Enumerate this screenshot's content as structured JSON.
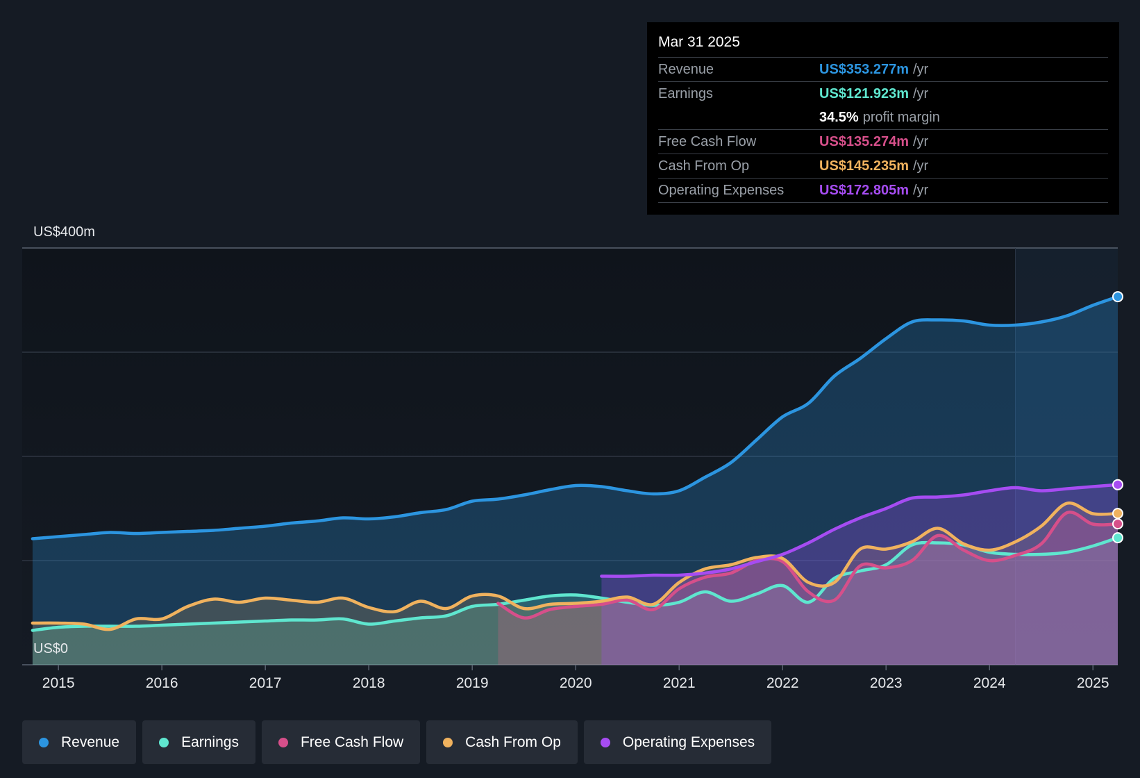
{
  "tooltip": {
    "date": "Mar 31 2025",
    "rows": [
      {
        "label": "Revenue",
        "value": "US$353.277m",
        "unit": "/yr",
        "color": "#2c95e0"
      },
      {
        "label": "Earnings",
        "value": "US$121.923m",
        "unit": "/yr",
        "color": "#5fe6cf"
      },
      {
        "label": "",
        "value": "34.5%",
        "unit": "profit margin",
        "color": "#ffffff"
      },
      {
        "label": "Free Cash Flow",
        "value": "US$135.274m",
        "unit": "/yr",
        "color": "#d64f8a"
      },
      {
        "label": "Cash From Op",
        "value": "US$145.235m",
        "unit": "/yr",
        "color": "#f0b25e"
      },
      {
        "label": "Operating Expenses",
        "value": "US$172.805m",
        "unit": "/yr",
        "color": "#a64cf2"
      }
    ]
  },
  "legend": [
    {
      "label": "Revenue",
      "color": "#2c95e0"
    },
    {
      "label": "Earnings",
      "color": "#5fe6cf"
    },
    {
      "label": "Free Cash Flow",
      "color": "#d64f8a"
    },
    {
      "label": "Cash From Op",
      "color": "#f0b25e"
    },
    {
      "label": "Operating Expenses",
      "color": "#a64cf2"
    }
  ],
  "chart_data": {
    "type": "area",
    "y_axis_labels": [
      "US$400m",
      "US$0"
    ],
    "ylim": [
      0,
      400
    ],
    "xlim": [
      2014.65,
      2025.24
    ],
    "x_ticks": [
      "2015",
      "2016",
      "2017",
      "2018",
      "2019",
      "2020",
      "2021",
      "2022",
      "2023",
      "2024",
      "2025"
    ],
    "grid": true,
    "series": [
      {
        "name": "Revenue",
        "color": "#2c95e0",
        "points": [
          [
            2014.75,
            121
          ],
          [
            2015.0,
            123
          ],
          [
            2015.25,
            125
          ],
          [
            2015.5,
            127
          ],
          [
            2015.75,
            126
          ],
          [
            2016.0,
            127
          ],
          [
            2016.25,
            128
          ],
          [
            2016.5,
            129
          ],
          [
            2016.75,
            131
          ],
          [
            2017.0,
            133
          ],
          [
            2017.25,
            136
          ],
          [
            2017.5,
            138
          ],
          [
            2017.75,
            141
          ],
          [
            2018.0,
            140
          ],
          [
            2018.25,
            142
          ],
          [
            2018.5,
            146
          ],
          [
            2018.75,
            149
          ],
          [
            2019.0,
            157
          ],
          [
            2019.25,
            159
          ],
          [
            2019.5,
            163
          ],
          [
            2019.75,
            168
          ],
          [
            2020.0,
            172
          ],
          [
            2020.25,
            171
          ],
          [
            2020.5,
            167
          ],
          [
            2020.75,
            164
          ],
          [
            2021.0,
            167
          ],
          [
            2021.25,
            180
          ],
          [
            2021.5,
            194
          ],
          [
            2021.75,
            216
          ],
          [
            2022.0,
            238
          ],
          [
            2022.25,
            251
          ],
          [
            2022.5,
            277
          ],
          [
            2022.75,
            294
          ],
          [
            2023.0,
            313
          ],
          [
            2023.25,
            329
          ],
          [
            2023.5,
            331
          ],
          [
            2023.75,
            330
          ],
          [
            2024.0,
            326
          ],
          [
            2024.25,
            326
          ],
          [
            2024.5,
            329
          ],
          [
            2024.75,
            335
          ],
          [
            2025.0,
            345
          ],
          [
            2025.24,
            353.277
          ]
        ]
      },
      {
        "name": "Earnings",
        "color": "#5fe6cf",
        "points": [
          [
            2014.75,
            33
          ],
          [
            2015.0,
            36
          ],
          [
            2015.25,
            37
          ],
          [
            2015.5,
            37
          ],
          [
            2015.75,
            37
          ],
          [
            2016.0,
            38
          ],
          [
            2016.25,
            39
          ],
          [
            2016.5,
            40
          ],
          [
            2016.75,
            41
          ],
          [
            2017.0,
            42
          ],
          [
            2017.25,
            43
          ],
          [
            2017.5,
            43
          ],
          [
            2017.75,
            44
          ],
          [
            2018.0,
            39
          ],
          [
            2018.25,
            42
          ],
          [
            2018.5,
            45
          ],
          [
            2018.75,
            47
          ],
          [
            2019.0,
            56
          ],
          [
            2019.25,
            58
          ],
          [
            2019.5,
            62
          ],
          [
            2019.75,
            66
          ],
          [
            2020.0,
            67
          ],
          [
            2020.25,
            64
          ],
          [
            2020.5,
            60
          ],
          [
            2020.75,
            57
          ],
          [
            2021.0,
            60
          ],
          [
            2021.25,
            70
          ],
          [
            2021.5,
            61
          ],
          [
            2021.75,
            68
          ],
          [
            2022.0,
            76
          ],
          [
            2022.25,
            60
          ],
          [
            2022.5,
            83
          ],
          [
            2022.75,
            90
          ],
          [
            2023.0,
            96
          ],
          [
            2023.25,
            115
          ],
          [
            2023.5,
            117
          ],
          [
            2023.75,
            115
          ],
          [
            2024.0,
            108
          ],
          [
            2024.25,
            106
          ],
          [
            2024.5,
            106
          ],
          [
            2024.75,
            108
          ],
          [
            2025.0,
            114
          ],
          [
            2025.24,
            121.923
          ]
        ]
      },
      {
        "name": "Free Cash Flow",
        "color": "#d64f8a",
        "points": [
          [
            2019.25,
            59
          ],
          [
            2019.5,
            45
          ],
          [
            2019.75,
            53
          ],
          [
            2020.0,
            56
          ],
          [
            2020.25,
            58
          ],
          [
            2020.5,
            62
          ],
          [
            2020.75,
            53
          ],
          [
            2021.0,
            73
          ],
          [
            2021.25,
            84
          ],
          [
            2021.5,
            88
          ],
          [
            2021.75,
            100
          ],
          [
            2022.0,
            99
          ],
          [
            2022.25,
            70
          ],
          [
            2022.5,
            62
          ],
          [
            2022.75,
            95
          ],
          [
            2023.0,
            93
          ],
          [
            2023.25,
            100
          ],
          [
            2023.5,
            124
          ],
          [
            2023.75,
            110
          ],
          [
            2024.0,
            100
          ],
          [
            2024.25,
            105
          ],
          [
            2024.5,
            116
          ],
          [
            2024.75,
            146
          ],
          [
            2025.0,
            135
          ],
          [
            2025.24,
            135.274
          ]
        ]
      },
      {
        "name": "Cash From Op",
        "color": "#f0b25e",
        "points": [
          [
            2014.75,
            40
          ],
          [
            2015.0,
            40
          ],
          [
            2015.25,
            39
          ],
          [
            2015.5,
            34
          ],
          [
            2015.75,
            44
          ],
          [
            2016.0,
            44
          ],
          [
            2016.25,
            56
          ],
          [
            2016.5,
            63
          ],
          [
            2016.75,
            60
          ],
          [
            2017.0,
            64
          ],
          [
            2017.25,
            62
          ],
          [
            2017.5,
            60
          ],
          [
            2017.75,
            64
          ],
          [
            2018.0,
            55
          ],
          [
            2018.25,
            51
          ],
          [
            2018.5,
            61
          ],
          [
            2018.75,
            54
          ],
          [
            2019.0,
            66
          ],
          [
            2019.25,
            66
          ],
          [
            2019.5,
            54
          ],
          [
            2019.75,
            58
          ],
          [
            2020.0,
            59
          ],
          [
            2020.25,
            61
          ],
          [
            2020.5,
            65
          ],
          [
            2020.75,
            58
          ],
          [
            2021.0,
            79
          ],
          [
            2021.25,
            92
          ],
          [
            2021.5,
            96
          ],
          [
            2021.75,
            103
          ],
          [
            2022.0,
            102
          ],
          [
            2022.25,
            79
          ],
          [
            2022.5,
            79
          ],
          [
            2022.75,
            111
          ],
          [
            2023.0,
            111
          ],
          [
            2023.25,
            118
          ],
          [
            2023.5,
            131
          ],
          [
            2023.75,
            116
          ],
          [
            2024.0,
            110
          ],
          [
            2024.25,
            118
          ],
          [
            2024.5,
            133
          ],
          [
            2024.75,
            155
          ],
          [
            2025.0,
            145
          ],
          [
            2025.24,
            145.235
          ]
        ]
      },
      {
        "name": "Operating Expenses",
        "color": "#a64cf2",
        "points": [
          [
            2020.25,
            85
          ],
          [
            2020.5,
            85
          ],
          [
            2020.75,
            86
          ],
          [
            2021.0,
            86
          ],
          [
            2021.25,
            88
          ],
          [
            2021.5,
            92
          ],
          [
            2021.75,
            99
          ],
          [
            2022.0,
            106
          ],
          [
            2022.25,
            117
          ],
          [
            2022.5,
            130
          ],
          [
            2022.75,
            141
          ],
          [
            2023.0,
            150
          ],
          [
            2023.25,
            160
          ],
          [
            2023.5,
            161
          ],
          [
            2023.75,
            163
          ],
          [
            2024.0,
            167
          ],
          [
            2024.25,
            170
          ],
          [
            2024.5,
            167
          ],
          [
            2024.75,
            169
          ],
          [
            2025.0,
            171
          ],
          [
            2025.24,
            172.805
          ]
        ]
      }
    ]
  }
}
